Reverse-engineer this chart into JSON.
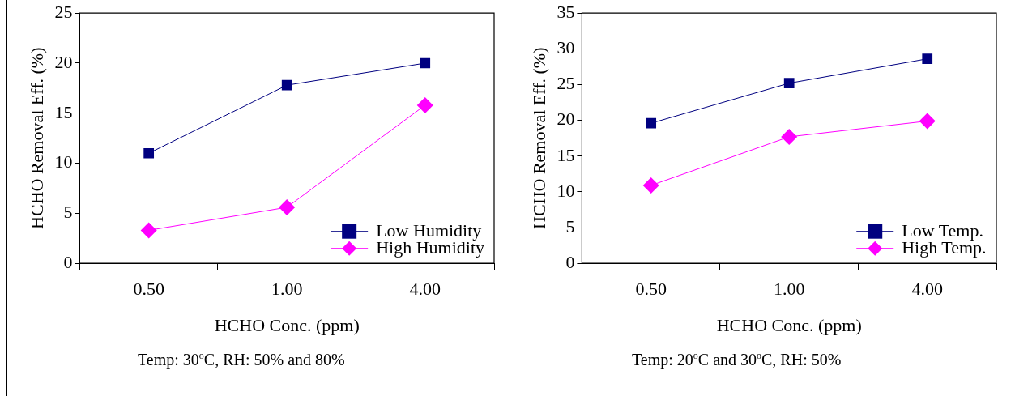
{
  "chart_data": [
    {
      "type": "line",
      "categories": [
        "0.50",
        "1.00",
        "4.00"
      ],
      "xlabel": "HCHO Conc. (ppm)",
      "ylabel": "HCHO Removal Eff. (%)",
      "ylim": [
        0,
        25
      ],
      "yticks": [
        0,
        5,
        10,
        15,
        20,
        25
      ],
      "grid": false,
      "legend": "bottom right",
      "line_style": "solid",
      "series": [
        {
          "name": "Low Humidity",
          "color": "#000080",
          "marker": "square",
          "values": [
            11.0,
            17.8,
            20.0
          ]
        },
        {
          "name": "High Humidity",
          "color": "#ff00ff",
          "marker": "diamond",
          "values": [
            3.3,
            5.6,
            15.8
          ]
        }
      ],
      "annotations": [
        "Temp: 30$^{o}$C, RH: 50% and 80%"
      ]
    },
    {
      "type": "line",
      "categories": [
        "0.50",
        "1.00",
        "4.00"
      ],
      "xlabel": "HCHO Conc. (ppm)",
      "ylabel": "HCHO Removal Eff. (%)",
      "ylim": [
        0,
        35
      ],
      "yticks": [
        0,
        5,
        10,
        15,
        20,
        25,
        30,
        35
      ],
      "grid": false,
      "legend": "bottom right",
      "line_style": "solid",
      "series": [
        {
          "name": "Low Temp.",
          "color": "#000080",
          "marker": "square",
          "values": [
            19.6,
            25.2,
            28.6
          ]
        },
        {
          "name": "High Temp.",
          "color": "#ff00ff",
          "marker": "diamond",
          "values": [
            10.9,
            17.7,
            19.9
          ]
        }
      ],
      "annotations": [
        "Temp: 20$^{o}$C and 30$^{o}$C, RH: 50%"
      ]
    }
  ]
}
